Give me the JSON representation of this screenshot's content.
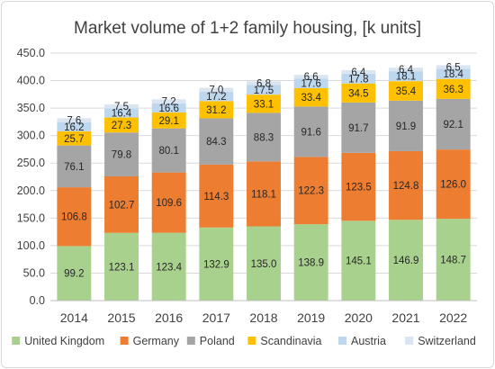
{
  "chart_data": {
    "type": "bar",
    "stacked": true,
    "title": "Market volume of 1+2 family housing, [k units]",
    "xlabel": "",
    "ylabel": "",
    "categories": [
      "2014",
      "2015",
      "2016",
      "2017",
      "2018",
      "2019",
      "2020",
      "2021",
      "2022"
    ],
    "ylim": [
      0,
      450
    ],
    "yticks": [
      "0.0",
      "50.0",
      "100.0",
      "150.0",
      "200.0",
      "250.0",
      "300.0",
      "350.0",
      "400.0",
      "450.0"
    ],
    "grid": true,
    "legend_position": "bottom",
    "series": [
      {
        "name": "United Kingdom",
        "color": "#a9d18e",
        "values": [
          99.2,
          123.1,
          123.4,
          132.9,
          135.0,
          138.9,
          145.1,
          146.9,
          148.7
        ],
        "labels": [
          "99.2",
          "123.1",
          "123.4",
          "132.9",
          "135.0",
          "138.9",
          "145.1",
          "146.9",
          "148.7"
        ]
      },
      {
        "name": "Germany",
        "color": "#ed7d31",
        "values": [
          106.8,
          102.7,
          109.6,
          114.3,
          118.1,
          122.3,
          123.5,
          124.8,
          126.0
        ],
        "labels": [
          "106.8",
          "102.7",
          "109.6",
          "114.3",
          "118.1",
          "122.3",
          "123.5",
          "124.8",
          "126.0"
        ]
      },
      {
        "name": "Poland",
        "color": "#a5a5a5",
        "values": [
          76.1,
          79.8,
          80.1,
          84.3,
          88.3,
          91.6,
          91.7,
          91.9,
          92.1
        ],
        "labels": [
          "76.1",
          "79.8",
          "80.1",
          "84.3",
          "88.3",
          "91.6",
          "91.7",
          "91.9",
          "92.1"
        ]
      },
      {
        "name": "Scandinavia",
        "color": "#ffc000",
        "values": [
          25.7,
          27.3,
          29.1,
          31.2,
          33.1,
          33.4,
          34.5,
          35.4,
          36.3
        ],
        "labels": [
          "25.7",
          "27.3",
          "29.1",
          "31.2",
          "33.1",
          "33.4",
          "34.5",
          "35.4",
          "36.3"
        ]
      },
      {
        "name": "Austria",
        "color": "#bdd7ee",
        "values": [
          16.2,
          16.4,
          16.6,
          17.2,
          17.5,
          17.6,
          17.8,
          18.1,
          18.4
        ],
        "labels": [
          "16.2",
          "16.4",
          "16.6",
          "17.2",
          "17.5",
          "17.6",
          "17.8",
          "18.1",
          "18.4"
        ]
      },
      {
        "name": "Switzerland",
        "color": "#dbe5f1",
        "values": [
          7.6,
          7.5,
          7.2,
          7.0,
          6.8,
          6.6,
          6.4,
          6.4,
          6.5
        ],
        "labels": [
          "7.6",
          "7.5",
          "7.2",
          "7.0",
          "6.8",
          "6.6",
          "6.4",
          "6.4",
          "6.5"
        ]
      }
    ]
  }
}
